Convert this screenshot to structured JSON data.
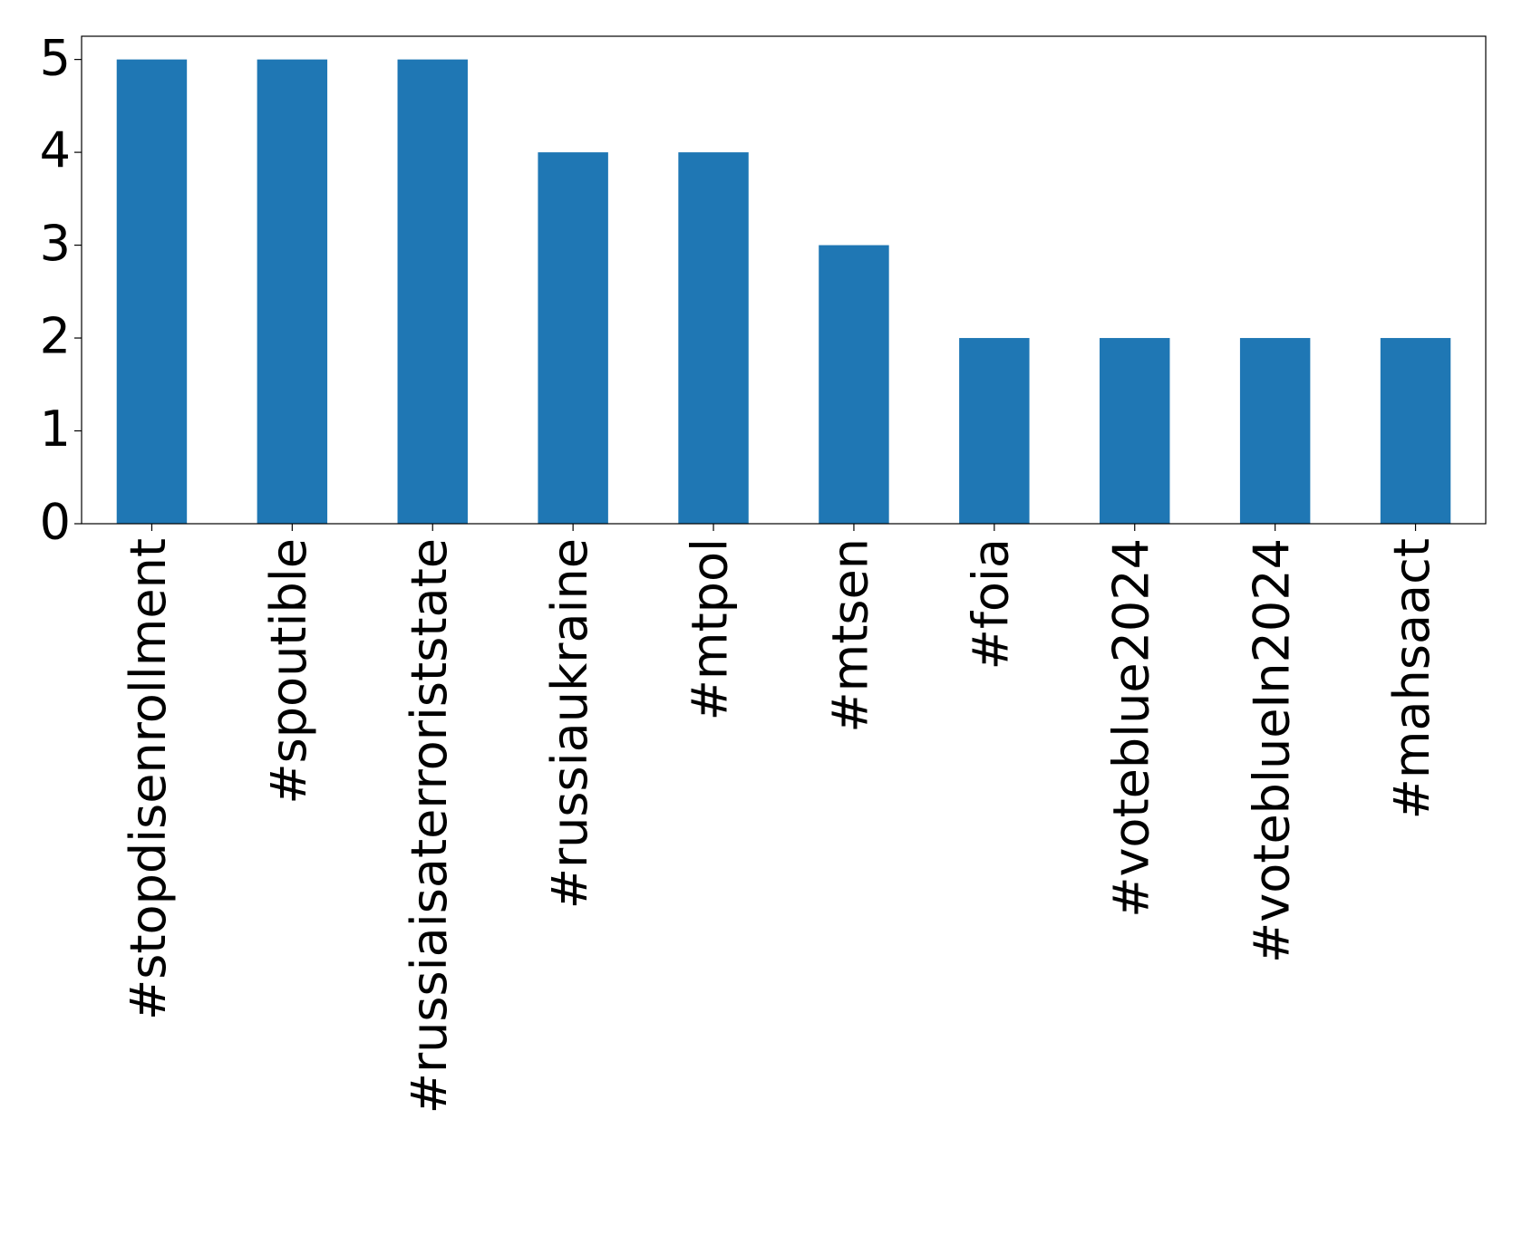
{
  "chart_data": {
    "type": "bar",
    "categories": [
      "#stopdisenrollment",
      "#spoutible",
      "#russiaisaterroriststate",
      "#russiaukraine",
      "#mtpol",
      "#mtsen",
      "#foia",
      "#voteblue2024",
      "#voteblueIn2024",
      "#mahsaact"
    ],
    "values": [
      5,
      5,
      5,
      4,
      4,
      3,
      2,
      2,
      2,
      2
    ],
    "color": "#1f77b4",
    "ylim": [
      0,
      5.25
    ],
    "yticks": [
      0,
      1,
      2,
      3,
      4,
      5
    ],
    "grid": false
  }
}
